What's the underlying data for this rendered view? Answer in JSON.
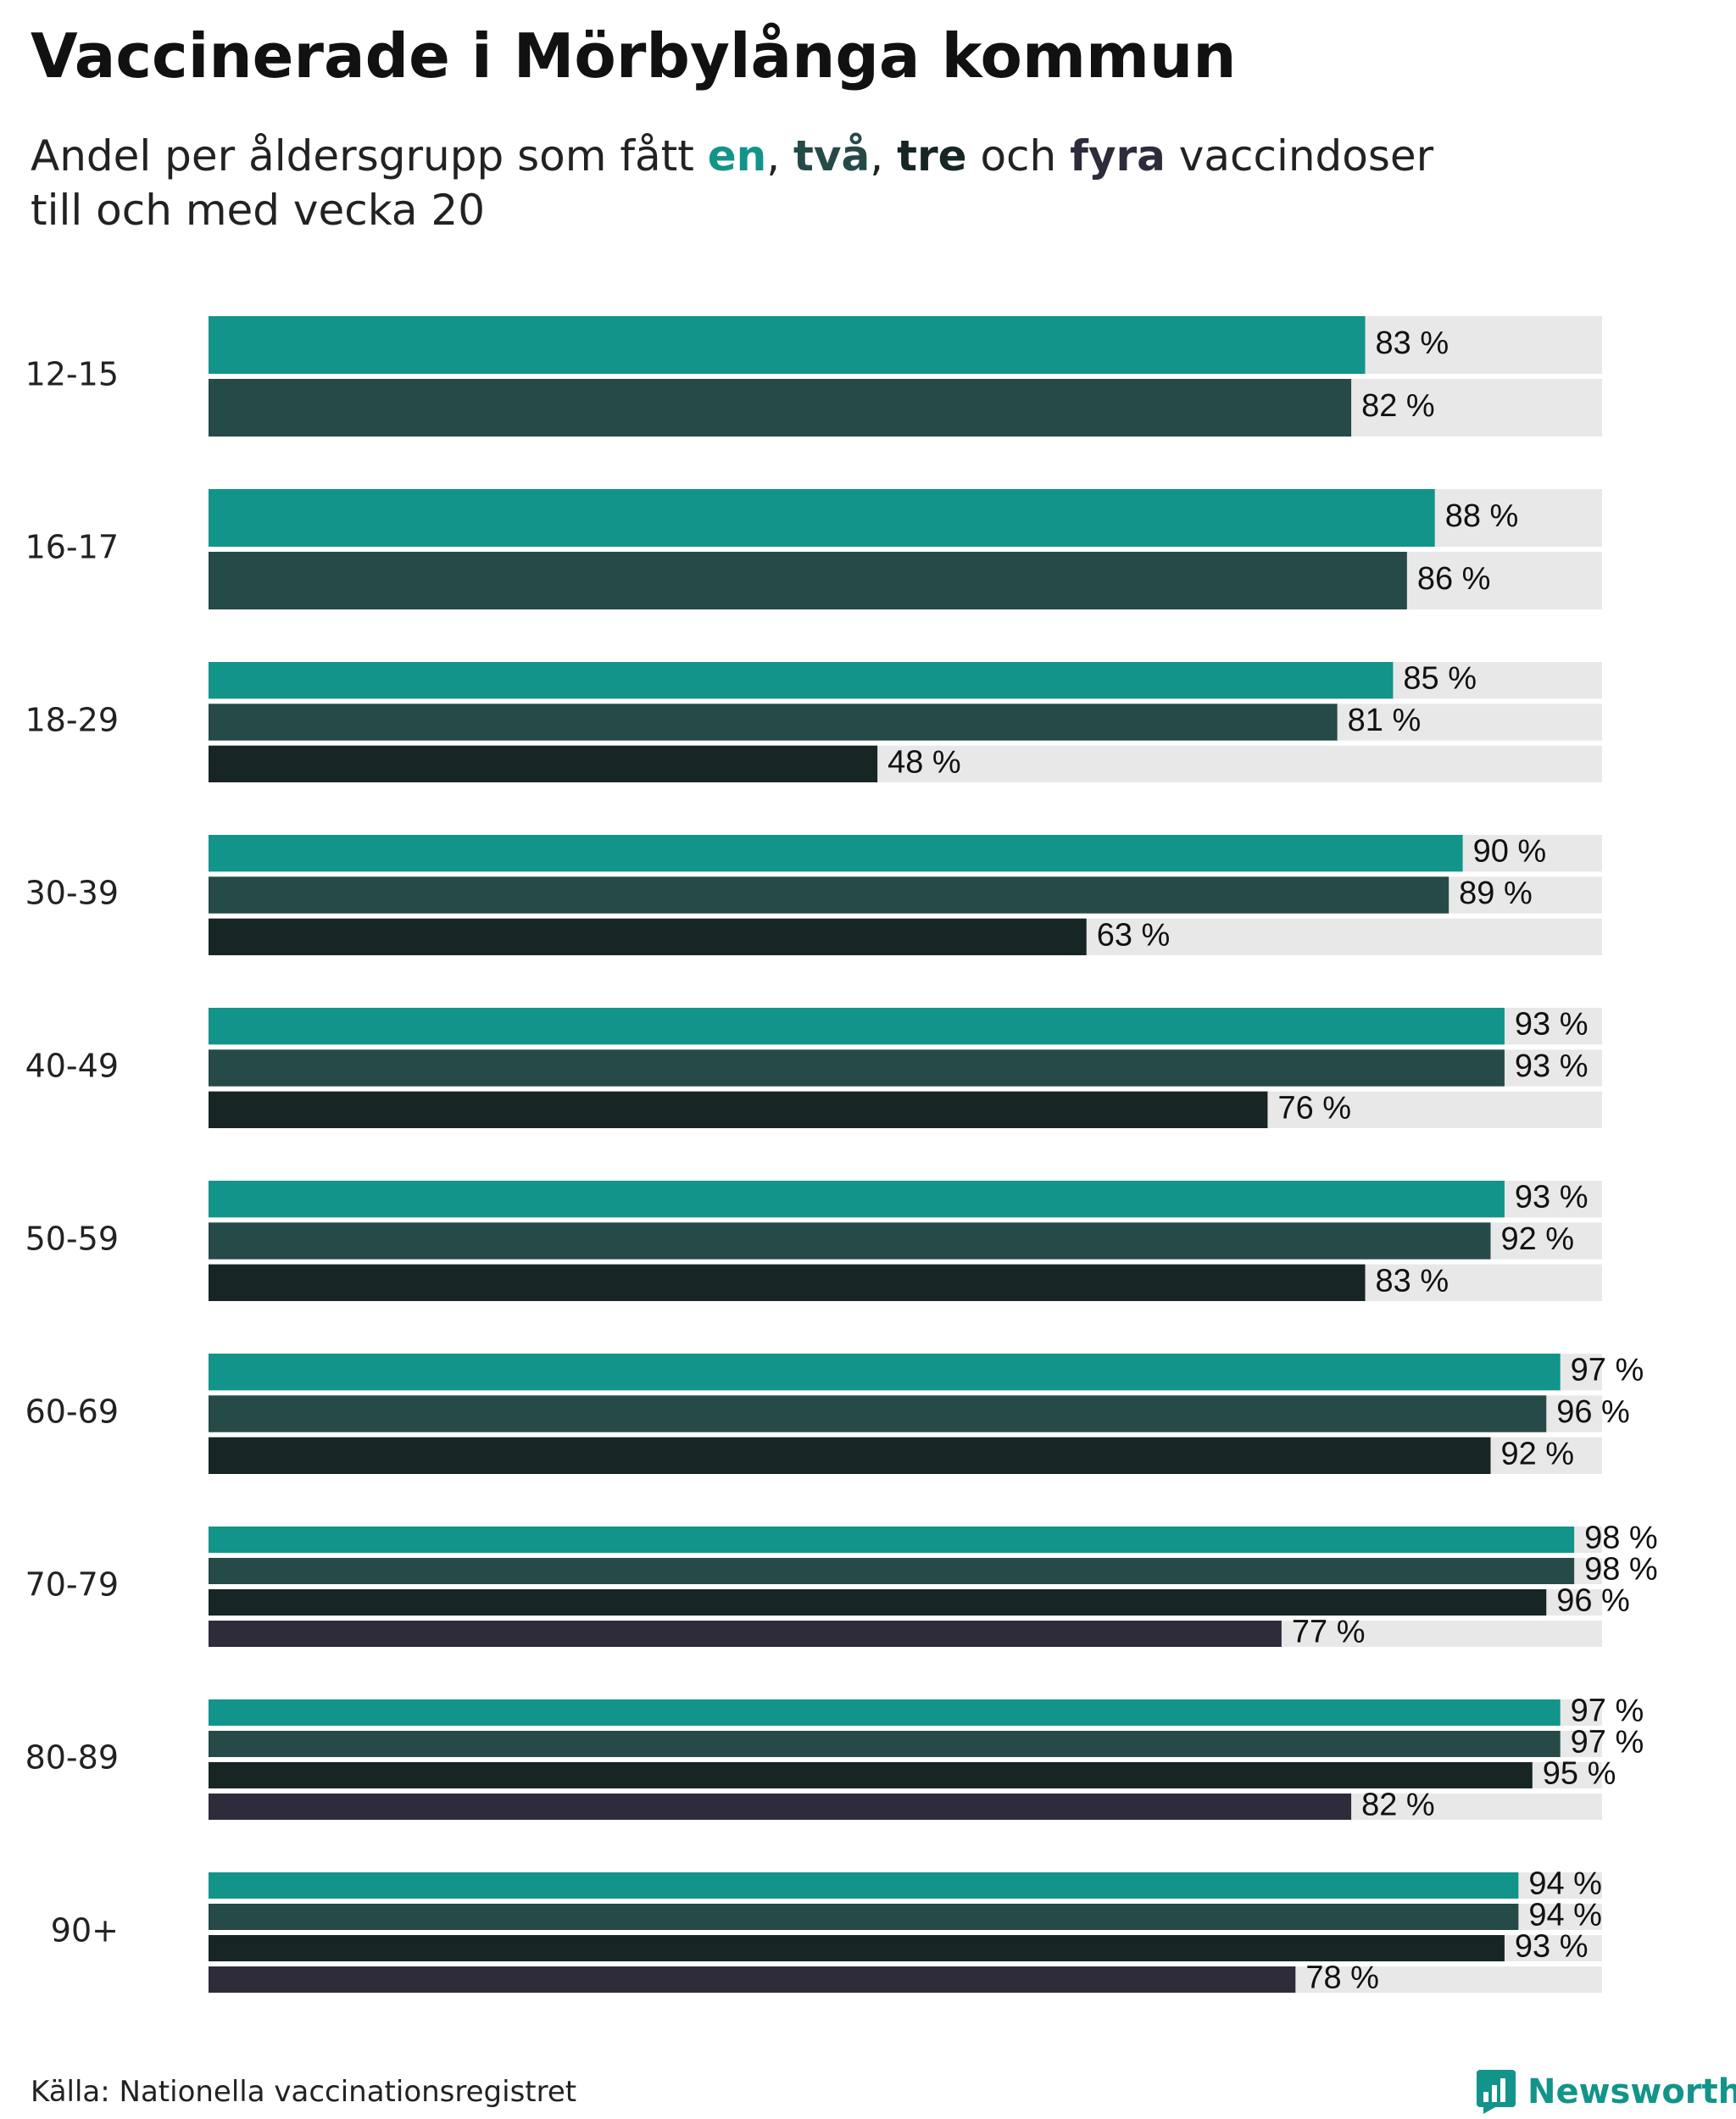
{
  "title": "Vaccinerade i Mörbylånga kommun",
  "subtitle": {
    "prefix": "Andel per åldersgrupp som fått ",
    "en": "en",
    "sep1": ", ",
    "tva": "två",
    "sep2": ", ",
    "tre": "tre",
    "och": " och ",
    "fyra": "fyra",
    "suffix": " vaccindoser",
    "line2": "till och med vecka 20"
  },
  "colors": {
    "en": "#12948a",
    "tva": "#264a48",
    "tre": "#172624",
    "fyra": "#2e2c3b",
    "track": "#e8e8e8"
  },
  "chart_data": {
    "type": "bar",
    "orientation": "horizontal",
    "xlim": [
      0,
      100
    ],
    "unit": "%",
    "categories": [
      "12-15",
      "16-17",
      "18-29",
      "30-39",
      "40-49",
      "50-59",
      "60-69",
      "70-79",
      "80-89",
      "90+"
    ],
    "series": [
      {
        "name": "en",
        "values": [
          83,
          88,
          85,
          90,
          93,
          93,
          97,
          98,
          97,
          94
        ]
      },
      {
        "name": "två",
        "values": [
          82,
          86,
          81,
          89,
          93,
          92,
          96,
          98,
          97,
          94
        ]
      },
      {
        "name": "tre",
        "values": [
          null,
          null,
          48,
          63,
          76,
          83,
          92,
          96,
          95,
          93
        ]
      },
      {
        "name": "fyra",
        "values": [
          null,
          null,
          null,
          null,
          null,
          null,
          null,
          77,
          82,
          78
        ]
      }
    ]
  },
  "footer": {
    "source": "Källa: Nationella vaccinationsregistret",
    "brand": "Newsworthy"
  }
}
